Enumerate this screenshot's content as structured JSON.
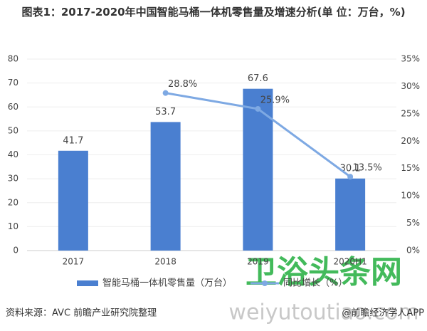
{
  "chart_data": {
    "type": "combo",
    "title": "图表1：2017-2020年中国智能马桶一体机零售量及增速分析(单 位：万台，%)",
    "categories": [
      "2017",
      "2018",
      "2019",
      "2020H1"
    ],
    "series": [
      {
        "name": "智能马桶一体机零售量（万台）",
        "type": "bar",
        "color": "#4a7fd0",
        "values": [
          41.7,
          53.7,
          67.6,
          30.1
        ]
      },
      {
        "name": "同比增长（%）",
        "type": "line",
        "axis": "y2",
        "color": "#7ea9e3",
        "values": [
          null,
          28.8,
          25.9,
          13.5
        ],
        "value_labels": [
          null,
          "28.8%",
          "25.9%",
          "13.5%"
        ]
      }
    ],
    "ylim": [
      0,
      80
    ],
    "yticks": [
      0,
      10,
      20,
      30,
      40,
      50,
      60,
      70,
      80
    ],
    "y2lim": [
      0,
      35
    ],
    "y2ticks": [
      {
        "value": 0,
        "label": "0%"
      },
      {
        "value": 5,
        "label": "5%"
      },
      {
        "value": 10,
        "label": "10%"
      },
      {
        "value": 15,
        "label": "15%"
      },
      {
        "value": 20,
        "label": "20%"
      },
      {
        "value": 25,
        "label": "25%"
      },
      {
        "value": 30,
        "label": "30%"
      },
      {
        "value": 35,
        "label": "35%"
      }
    ],
    "grid": true,
    "legend": "bottom",
    "source": "资料来源：AVC 前瞻产业研究院整理",
    "watermarks": [
      "卫浴头条网",
      "weiyutoutiao.com",
      "@前瞻经济学人APP"
    ]
  }
}
